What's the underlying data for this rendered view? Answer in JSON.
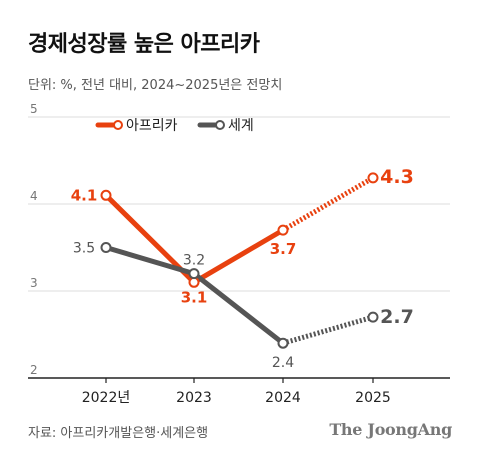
{
  "title": "경제성장률 높은 아프리카",
  "subtitle": "단위: %, 전년 대비, 2024~2025년은 전망치",
  "source": "자료: 아프리카개발은행·세계은행",
  "brand": "The JoongAng",
  "colors": {
    "africa": "#E8410F",
    "world": "#555555",
    "grid": "#dddddd",
    "axis": "#222222"
  },
  "chart_data": {
    "type": "line",
    "title": "경제성장률 높은 아프리카",
    "subtitle": "단위: %, 전년 대비, 2024~2025년은 전망치",
    "categories": [
      "2022년",
      "2023",
      "2024",
      "2025"
    ],
    "ylim": [
      2,
      5
    ],
    "yticks": [
      "2",
      "3",
      "4",
      "5"
    ],
    "grid": "horizontal",
    "legend": "top",
    "forecast_from_index": 2,
    "series": [
      {
        "name": "아프리카",
        "key": "africa",
        "values": [
          4.1,
          3.1,
          3.7,
          4.3
        ],
        "labels": [
          "4.1",
          "3.1",
          "3.7",
          "4.3"
        ]
      },
      {
        "name": "세계",
        "key": "world",
        "values": [
          3.5,
          3.2,
          2.4,
          2.7
        ],
        "labels": [
          "3.5",
          "3.2",
          "2.4",
          "2.7"
        ]
      }
    ]
  }
}
